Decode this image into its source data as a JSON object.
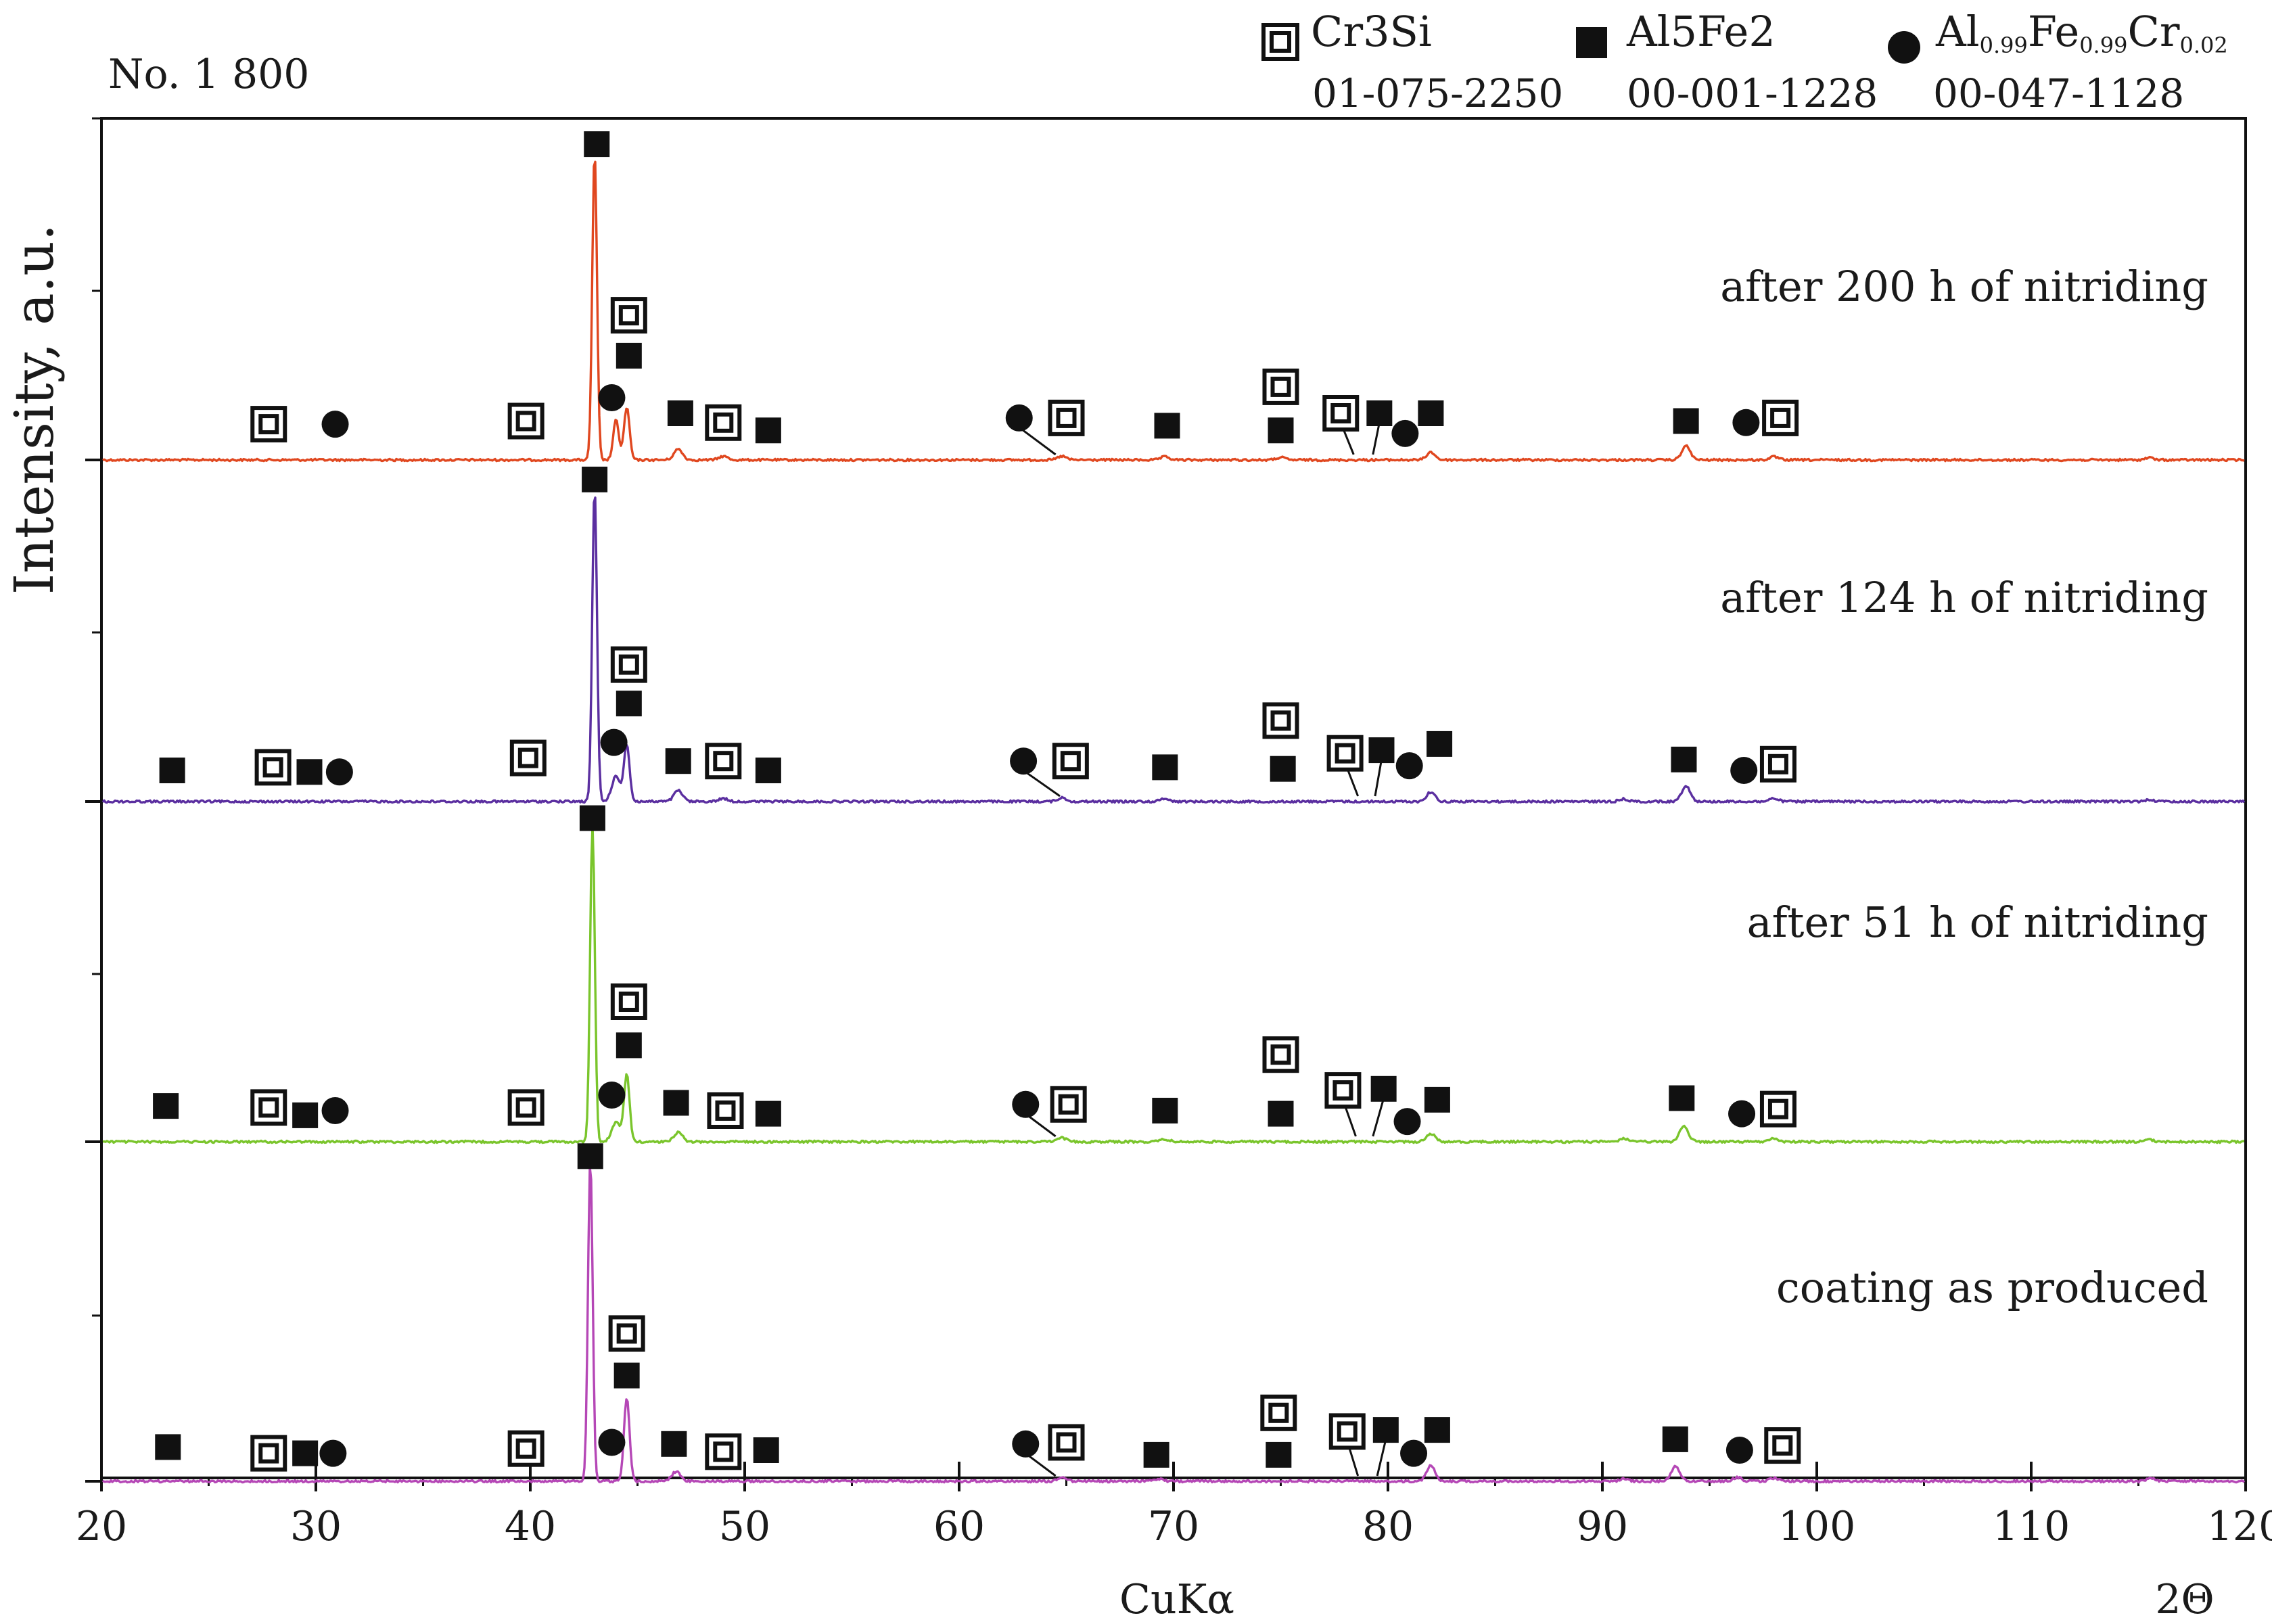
{
  "chart_data": {
    "type": "line",
    "title": "No. 1 800",
    "xlabel": "CuKα",
    "x_unit_label": "2Θ",
    "ylabel": "Intensity, a.u.",
    "xlim": [
      20,
      120
    ],
    "x_ticks": [
      "20",
      "30",
      "40",
      "50",
      "60",
      "70",
      "80",
      "90",
      "100",
      "110",
      "120"
    ],
    "x_tick_values": [
      20,
      30,
      40,
      50,
      60,
      70,
      80,
      90,
      100,
      110,
      120
    ],
    "legend": [
      {
        "marker": "double-square",
        "phase": "Cr3Si",
        "phase_display": "Cr3Si",
        "card": "01-075-2250"
      },
      {
        "marker": "filled-square",
        "phase": "Al5Fe2",
        "phase_display": "Al5Fe2",
        "card": "00-001-1228"
      },
      {
        "marker": "filled-circle",
        "phase": "Al0.99Fe0.99Cr0.02",
        "el1": "Al",
        "sub1": "0.99",
        "el2": "Fe",
        "sub2": "0.99",
        "el3": "Cr",
        "sub3": "0.02",
        "card": "00-047-1128"
      }
    ],
    "series": [
      {
        "name": "after 200 h of nitriding",
        "color": "#e0471f",
        "peaks": [
          {
            "x": 43.0,
            "h": 1.0
          },
          {
            "x": 44.0,
            "h": 0.13
          },
          {
            "x": 44.5,
            "h": 0.17
          },
          {
            "x": 46.9,
            "h": 0.035
          },
          {
            "x": 49.0,
            "h": 0.012
          },
          {
            "x": 64.8,
            "h": 0.012
          },
          {
            "x": 69.6,
            "h": 0.01
          },
          {
            "x": 75.0,
            "h": 0.008
          },
          {
            "x": 82.0,
            "h": 0.025
          },
          {
            "x": 93.9,
            "h": 0.045
          },
          {
            "x": 98.0,
            "h": 0.01
          },
          {
            "x": 115.5,
            "h": 0.007
          }
        ],
        "markers": [
          {
            "type": "double-square",
            "x": 27.8,
            "y": 23
          },
          {
            "type": "filled-circle",
            "x": 30.9,
            "y": 23
          },
          {
            "type": "double-square",
            "x": 39.8,
            "y": 25
          },
          {
            "type": "filled-square",
            "x": 43.1,
            "y": 203
          },
          {
            "type": "double-square",
            "x": 44.6,
            "y": 93
          },
          {
            "type": "filled-square",
            "x": 44.6,
            "y": 67
          },
          {
            "type": "filled-circle",
            "x": 43.8,
            "y": 40
          },
          {
            "type": "filled-square",
            "x": 47.0,
            "y": 30
          },
          {
            "type": "double-square",
            "x": 49.0,
            "y": 24
          },
          {
            "type": "filled-square",
            "x": 51.1,
            "y": 19
          },
          {
            "type": "filled-circle",
            "x": 62.8,
            "y": 27,
            "leader": 64.5
          },
          {
            "type": "double-square",
            "x": 65.0,
            "y": 27
          },
          {
            "type": "filled-square",
            "x": 69.7,
            "y": 22
          },
          {
            "type": "double-square",
            "x": 75.0,
            "y": 47
          },
          {
            "type": "filled-square",
            "x": 75.0,
            "y": 19
          },
          {
            "type": "double-square",
            "x": 77.8,
            "y": 30,
            "leader": 78.4
          },
          {
            "type": "filled-square",
            "x": 79.6,
            "y": 30,
            "leader": 79.3
          },
          {
            "type": "filled-circle",
            "x": 80.8,
            "y": 17
          },
          {
            "type": "filled-square",
            "x": 82.0,
            "y": 30
          },
          {
            "type": "filled-square",
            "x": 93.9,
            "y": 25
          },
          {
            "type": "filled-circle",
            "x": 96.7,
            "y": 24
          },
          {
            "type": "double-square",
            "x": 98.3,
            "y": 27
          }
        ]
      },
      {
        "name": "after 124 h of nitriding",
        "color": "#5b2fa0",
        "peaks": [
          {
            "x": 43.0,
            "h": 1.0
          },
          {
            "x": 44.0,
            "h": 0.08
          },
          {
            "x": 44.5,
            "h": 0.18
          },
          {
            "x": 46.9,
            "h": 0.035
          },
          {
            "x": 49.0,
            "h": 0.01
          },
          {
            "x": 64.8,
            "h": 0.012
          },
          {
            "x": 69.6,
            "h": 0.01
          },
          {
            "x": 82.0,
            "h": 0.03
          },
          {
            "x": 91.0,
            "h": 0.008
          },
          {
            "x": 93.9,
            "h": 0.05
          },
          {
            "x": 98.0,
            "h": 0.01
          },
          {
            "x": 115.5,
            "h": 0.006
          }
        ],
        "markers": [
          {
            "type": "filled-square",
            "x": 23.3,
            "y": 20
          },
          {
            "type": "double-square",
            "x": 28.0,
            "y": 22
          },
          {
            "type": "filled-square",
            "x": 29.7,
            "y": 19
          },
          {
            "type": "filled-circle",
            "x": 31.1,
            "y": 19
          },
          {
            "type": "double-square",
            "x": 39.9,
            "y": 28
          },
          {
            "type": "filled-square",
            "x": 43.0,
            "y": 207
          },
          {
            "type": "double-square",
            "x": 44.6,
            "y": 88
          },
          {
            "type": "filled-square",
            "x": 44.6,
            "y": 63
          },
          {
            "type": "filled-circle",
            "x": 43.9,
            "y": 38
          },
          {
            "type": "filled-square",
            "x": 46.9,
            "y": 26
          },
          {
            "type": "double-square",
            "x": 49.0,
            "y": 26
          },
          {
            "type": "filled-square",
            "x": 51.1,
            "y": 20
          },
          {
            "type": "filled-circle",
            "x": 63.0,
            "y": 26,
            "leader": 64.7
          },
          {
            "type": "double-square",
            "x": 65.2,
            "y": 26
          },
          {
            "type": "filled-square",
            "x": 69.6,
            "y": 22
          },
          {
            "type": "double-square",
            "x": 75.0,
            "y": 52
          },
          {
            "type": "filled-square",
            "x": 75.1,
            "y": 21
          },
          {
            "type": "double-square",
            "x": 78.0,
            "y": 31,
            "leader": 78.6
          },
          {
            "type": "filled-square",
            "x": 79.7,
            "y": 33,
            "leader": 79.4
          },
          {
            "type": "filled-circle",
            "x": 81.0,
            "y": 23
          },
          {
            "type": "filled-square",
            "x": 82.4,
            "y": 37
          },
          {
            "type": "filled-square",
            "x": 93.8,
            "y": 27
          },
          {
            "type": "filled-circle",
            "x": 96.6,
            "y": 20
          },
          {
            "type": "double-square",
            "x": 98.2,
            "y": 24
          }
        ]
      },
      {
        "name": "after 51 h of nitriding",
        "color": "#7ac52c",
        "peaks": [
          {
            "x": 42.9,
            "h": 1.0
          },
          {
            "x": 44.0,
            "h": 0.06
          },
          {
            "x": 44.5,
            "h": 0.21
          },
          {
            "x": 46.9,
            "h": 0.03
          },
          {
            "x": 64.8,
            "h": 0.012
          },
          {
            "x": 69.6,
            "h": 0.008
          },
          {
            "x": 82.0,
            "h": 0.025
          },
          {
            "x": 91.0,
            "h": 0.01
          },
          {
            "x": 93.8,
            "h": 0.05
          },
          {
            "x": 98.0,
            "h": 0.01
          },
          {
            "x": 115.5,
            "h": 0.006
          }
        ],
        "markers": [
          {
            "type": "filled-square",
            "x": 23.0,
            "y": 23
          },
          {
            "type": "double-square",
            "x": 27.8,
            "y": 22
          },
          {
            "type": "filled-square",
            "x": 29.5,
            "y": 17
          },
          {
            "type": "filled-circle",
            "x": 30.9,
            "y": 20
          },
          {
            "type": "double-square",
            "x": 39.8,
            "y": 22
          },
          {
            "type": "filled-square",
            "x": 42.9,
            "y": 208
          },
          {
            "type": "double-square",
            "x": 44.6,
            "y": 90
          },
          {
            "type": "filled-square",
            "x": 44.6,
            "y": 62
          },
          {
            "type": "filled-circle",
            "x": 43.8,
            "y": 30
          },
          {
            "type": "filled-square",
            "x": 46.8,
            "y": 25
          },
          {
            "type": "double-square",
            "x": 49.1,
            "y": 20
          },
          {
            "type": "filled-square",
            "x": 51.1,
            "y": 18
          },
          {
            "type": "filled-circle",
            "x": 63.1,
            "y": 24,
            "leader": 64.5
          },
          {
            "type": "double-square",
            "x": 65.1,
            "y": 24
          },
          {
            "type": "filled-square",
            "x": 69.6,
            "y": 20
          },
          {
            "type": "double-square",
            "x": 75.0,
            "y": 56
          },
          {
            "type": "filled-square",
            "x": 75.0,
            "y": 18
          },
          {
            "type": "double-square",
            "x": 77.9,
            "y": 33,
            "leader": 78.5
          },
          {
            "type": "filled-square",
            "x": 79.8,
            "y": 34,
            "leader": 79.3
          },
          {
            "type": "filled-circle",
            "x": 80.9,
            "y": 13
          },
          {
            "type": "filled-square",
            "x": 82.3,
            "y": 27
          },
          {
            "type": "filled-square",
            "x": 93.7,
            "y": 28
          },
          {
            "type": "filled-circle",
            "x": 96.5,
            "y": 18
          },
          {
            "type": "double-square",
            "x": 98.2,
            "y": 21
          }
        ]
      },
      {
        "name": "coating as produced",
        "color": "#b547b6",
        "peaks": [
          {
            "x": 42.8,
            "h": 1.0
          },
          {
            "x": 44.5,
            "h": 0.26
          },
          {
            "x": 46.8,
            "h": 0.03
          },
          {
            "x": 64.8,
            "h": 0.012
          },
          {
            "x": 69.3,
            "h": 0.008
          },
          {
            "x": 82.0,
            "h": 0.05
          },
          {
            "x": 91.0,
            "h": 0.008
          },
          {
            "x": 93.4,
            "h": 0.045
          },
          {
            "x": 96.3,
            "h": 0.012
          },
          {
            "x": 98.0,
            "h": 0.01
          },
          {
            "x": 115.6,
            "h": 0.01
          }
        ],
        "markers": [
          {
            "type": "filled-square",
            "x": 23.1,
            "y": 22
          },
          {
            "type": "double-square",
            "x": 27.8,
            "y": 18
          },
          {
            "type": "filled-square",
            "x": 29.5,
            "y": 18
          },
          {
            "type": "filled-circle",
            "x": 30.8,
            "y": 18
          },
          {
            "type": "double-square",
            "x": 39.8,
            "y": 21
          },
          {
            "type": "filled-square",
            "x": 42.8,
            "y": 209
          },
          {
            "type": "double-square",
            "x": 44.5,
            "y": 95
          },
          {
            "type": "filled-square",
            "x": 44.5,
            "y": 68
          },
          {
            "type": "filled-circle",
            "x": 43.8,
            "y": 25
          },
          {
            "type": "filled-square",
            "x": 46.7,
            "y": 24
          },
          {
            "type": "double-square",
            "x": 49.0,
            "y": 19
          },
          {
            "type": "filled-square",
            "x": 51.0,
            "y": 20
          },
          {
            "type": "filled-circle",
            "x": 63.1,
            "y": 24,
            "leader": 64.5
          },
          {
            "type": "double-square",
            "x": 65.0,
            "y": 25
          },
          {
            "type": "filled-square",
            "x": 69.2,
            "y": 17
          },
          {
            "type": "double-square",
            "x": 74.9,
            "y": 44
          },
          {
            "type": "filled-square",
            "x": 74.9,
            "y": 17
          },
          {
            "type": "double-square",
            "x": 78.1,
            "y": 32,
            "leader": 78.6
          },
          {
            "type": "filled-square",
            "x": 79.9,
            "y": 33,
            "leader": 79.5
          },
          {
            "type": "filled-circle",
            "x": 81.2,
            "y": 18
          },
          {
            "type": "filled-square",
            "x": 82.3,
            "y": 33
          },
          {
            "type": "filled-square",
            "x": 93.4,
            "y": 27
          },
          {
            "type": "filled-circle",
            "x": 96.4,
            "y": 20
          },
          {
            "type": "double-square",
            "x": 98.4,
            "y": 23
          }
        ]
      }
    ]
  }
}
